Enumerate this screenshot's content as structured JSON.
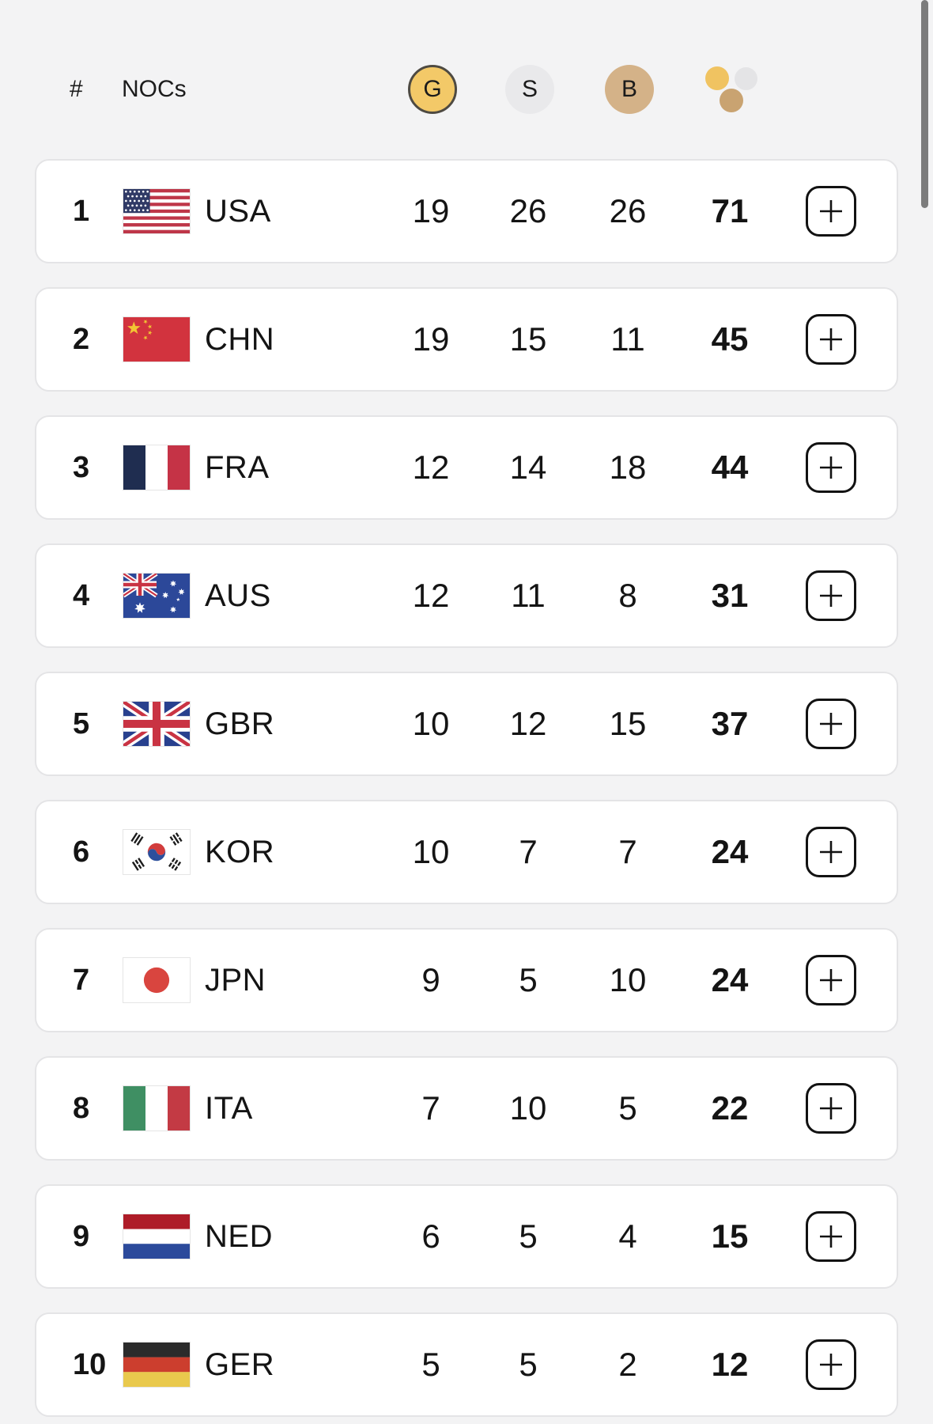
{
  "header": {
    "rank_label": "#",
    "noc_label": "NOCs",
    "gold_label": "G",
    "silver_label": "S",
    "bronze_label": "B"
  },
  "table": {
    "rows": [
      {
        "rank": "1",
        "noc": "USA",
        "flag": "usa",
        "gold": "19",
        "silver": "26",
        "bronze": "26",
        "total": "71"
      },
      {
        "rank": "2",
        "noc": "CHN",
        "flag": "chn",
        "gold": "19",
        "silver": "15",
        "bronze": "11",
        "total": "45"
      },
      {
        "rank": "3",
        "noc": "FRA",
        "flag": "fra",
        "gold": "12",
        "silver": "14",
        "bronze": "18",
        "total": "44"
      },
      {
        "rank": "4",
        "noc": "AUS",
        "flag": "aus",
        "gold": "12",
        "silver": "11",
        "bronze": "8",
        "total": "31"
      },
      {
        "rank": "5",
        "noc": "GBR",
        "flag": "gbr",
        "gold": "10",
        "silver": "12",
        "bronze": "15",
        "total": "37"
      },
      {
        "rank": "6",
        "noc": "KOR",
        "flag": "kor",
        "gold": "10",
        "silver": "7",
        "bronze": "7",
        "total": "24"
      },
      {
        "rank": "7",
        "noc": "JPN",
        "flag": "jpn",
        "gold": "9",
        "silver": "5",
        "bronze": "10",
        "total": "24"
      },
      {
        "rank": "8",
        "noc": "ITA",
        "flag": "ita",
        "gold": "7",
        "silver": "10",
        "bronze": "5",
        "total": "22"
      },
      {
        "rank": "9",
        "noc": "NED",
        "flag": "ned",
        "gold": "6",
        "silver": "5",
        "bronze": "4",
        "total": "15"
      },
      {
        "rank": "10",
        "noc": "GER",
        "flag": "ger",
        "gold": "5",
        "silver": "5",
        "bronze": "2",
        "total": "12"
      }
    ]
  },
  "colors": {
    "gold": "#F3C968",
    "gold_ring": "#4E4A42",
    "silver": "#E9E9EB",
    "bronze": "#D4B288",
    "total_gold": "#F0C361",
    "total_silver": "#E4E4E6",
    "total_bronze": "#C9A371"
  }
}
